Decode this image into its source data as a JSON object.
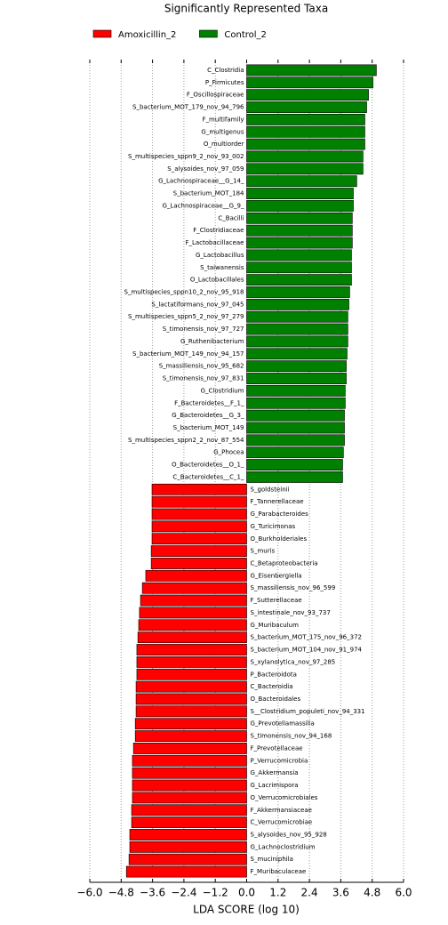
{
  "chart_data": {
    "type": "bar",
    "orientation": "horizontal",
    "title": "Significantly Represented Taxa",
    "xlabel": "LDA SCORE (log 10)",
    "xlim": [
      -6,
      6
    ],
    "xticks": [
      {
        "value": -6,
        "label": "−6.0"
      },
      {
        "value": -4.8,
        "label": "−4.8"
      },
      {
        "value": -3.6,
        "label": "−3.6"
      },
      {
        "value": -2.4,
        "label": "−2.4"
      },
      {
        "value": -1.2,
        "label": "−1.2"
      },
      {
        "value": 0,
        "label": "0.0"
      },
      {
        "value": 1.2,
        "label": "1.2"
      },
      {
        "value": 2.4,
        "label": "2.4"
      },
      {
        "value": 3.6,
        "label": "3.6"
      },
      {
        "value": 4.8,
        "label": "4.8"
      },
      {
        "value": 6,
        "label": "6.0"
      }
    ],
    "grid": true,
    "legend": "top-left",
    "categories": [
      "C_Clostridia",
      "P_Firmicutes",
      "F_Oscillospiraceae",
      "S_bacterium_MOT_179_nov_94_796",
      "F_multifamily",
      "G_multigenus",
      "O_multiorder",
      "S_multispecies_sppn9_2_nov_93_002",
      "S_alysoides_nov_97_059",
      "G_Lachnospiraceae__G_14_",
      "S_bacterium_MOT_184",
      "G_Lachnospiraceae__G_9_",
      "C_Bacilli",
      "F_Clostridiaceae",
      "F_Lactobacillaceae",
      "G_Lactobacillus",
      "S_taiwanensis",
      "O_Lactobacillales",
      "S_multispecies_sppn10_2_nov_95_918",
      "S_lactatiformans_nov_97_045",
      "S_multispecies_sppn5_2_nov_97_279",
      "S_timonensis_nov_97_727",
      "G_Ruthenibacterium",
      "S_bacterium_MOT_149_nov_94_157",
      "S_massiliensis_nov_95_682",
      "S_timonensis_nov_97_831",
      "G_Clostridium",
      "F_Bacteroidetes__F_1_",
      "G_Bacteroidetes__G_3_",
      "S_bacterium_MOT_149",
      "S_multispecies_sppn2_2_nov_87_554",
      "G_Phocea",
      "O_Bacteroidetes__O_1_",
      "C_Bacteroidetes__C_1_",
      "S_goldsteinii",
      "F_Tannerellaceae",
      "G_Parabacteroides",
      "G_Turicimonas",
      "O_Burkholderiales",
      "S_muris",
      "C_Betaproteobacteria",
      "G_Eisenbergiella",
      "S_massiliensis_nov_96_599",
      "F_Sutterellaceae",
      "S_intestinale_nov_93_737",
      "G_Muribaculum",
      "S_bacterium_MOT_175_nov_96_372",
      "S_bacterium_MOT_104_nov_91_974",
      "S_xylanolytica_nov_97_285",
      "P_Bacteroidota",
      "C_Bacteroidia",
      "O_Bacteroidales",
      "S__Clostridium_populeti_nov_94_331",
      "G_Prevotellamassilia",
      "S_timonensis_nov_94_168",
      "F_Prevotellaceae",
      "P_Verrucomicrobia",
      "G_Akkermansia",
      "G_Lacrimispora",
      "O_Verrucomicrobiales",
      "F_Akkermansiaceae",
      "C_Verrucomicrobiae",
      "S_alysoides_nov_95_928",
      "G_Lachnoclostridium",
      "S_muciniphila",
      "F_Muribaculaceae"
    ],
    "series": [
      {
        "name": "Amoxicillin_2",
        "color": "#ff0000",
        "values": [
          null,
          null,
          null,
          null,
          null,
          null,
          null,
          null,
          null,
          null,
          null,
          null,
          null,
          null,
          null,
          null,
          null,
          null,
          null,
          null,
          null,
          null,
          null,
          null,
          null,
          null,
          null,
          null,
          null,
          null,
          null,
          null,
          null,
          null,
          -3.62,
          -3.62,
          -3.62,
          -3.62,
          -3.62,
          -3.65,
          -3.65,
          -3.86,
          -3.99,
          -4.06,
          -4.1,
          -4.13,
          -4.16,
          -4.2,
          -4.2,
          -4.2,
          -4.23,
          -4.23,
          -4.23,
          -4.26,
          -4.26,
          -4.33,
          -4.37,
          -4.37,
          -4.37,
          -4.37,
          -4.4,
          -4.4,
          -4.47,
          -4.47,
          -4.5,
          -4.6
        ]
      },
      {
        "name": "Control_2",
        "color": "#008000",
        "values": [
          4.96,
          4.83,
          4.66,
          4.59,
          4.52,
          4.52,
          4.52,
          4.45,
          4.45,
          4.21,
          4.08,
          4.08,
          4.04,
          4.04,
          4.04,
          4.01,
          4.01,
          4.01,
          3.94,
          3.91,
          3.87,
          3.87,
          3.87,
          3.84,
          3.81,
          3.81,
          3.77,
          3.77,
          3.74,
          3.74,
          3.74,
          3.7,
          3.67,
          3.67,
          null,
          null,
          null,
          null,
          null,
          null,
          null,
          null,
          null,
          null,
          null,
          null,
          null,
          null,
          null,
          null,
          null,
          null,
          null,
          null,
          null,
          null,
          null,
          null,
          null,
          null,
          null,
          null,
          null,
          null,
          null,
          null
        ]
      }
    ]
  }
}
